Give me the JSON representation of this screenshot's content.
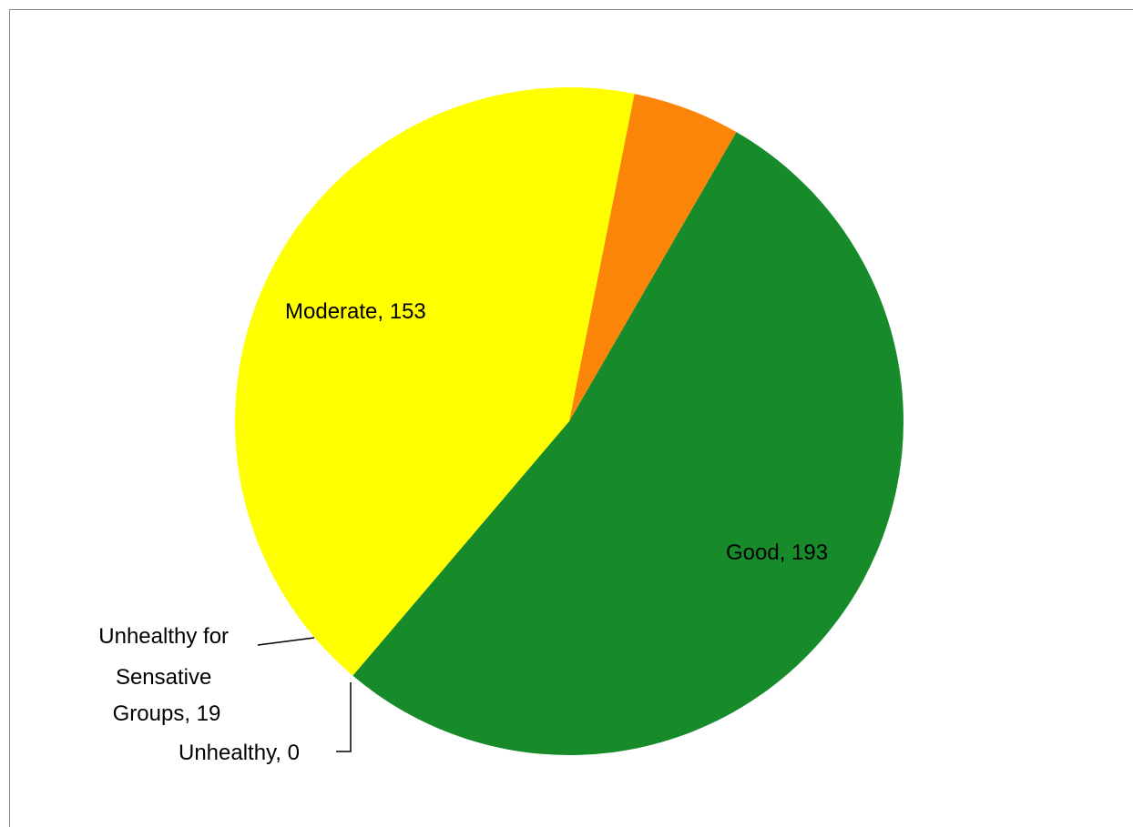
{
  "chart_data": {
    "type": "pie",
    "slices": [
      {
        "label": "Good",
        "value": 193,
        "color": "#178a2a",
        "data_label": "Good, 193"
      },
      {
        "label": "Moderate",
        "value": 153,
        "color": "#ffff00",
        "data_label": "Moderate, 153"
      },
      {
        "label": "Unhealthy for Sensative Groups",
        "value": 19,
        "color": "#fb8508",
        "data_label_lines": [
          "Unhealthy for",
          "Sensative",
          "Groups, 19"
        ]
      },
      {
        "label": "Unhealthy",
        "value": 0,
        "color": "#ff0000",
        "data_label": "Unhealthy, 0"
      }
    ],
    "legend": "none",
    "title": ""
  }
}
